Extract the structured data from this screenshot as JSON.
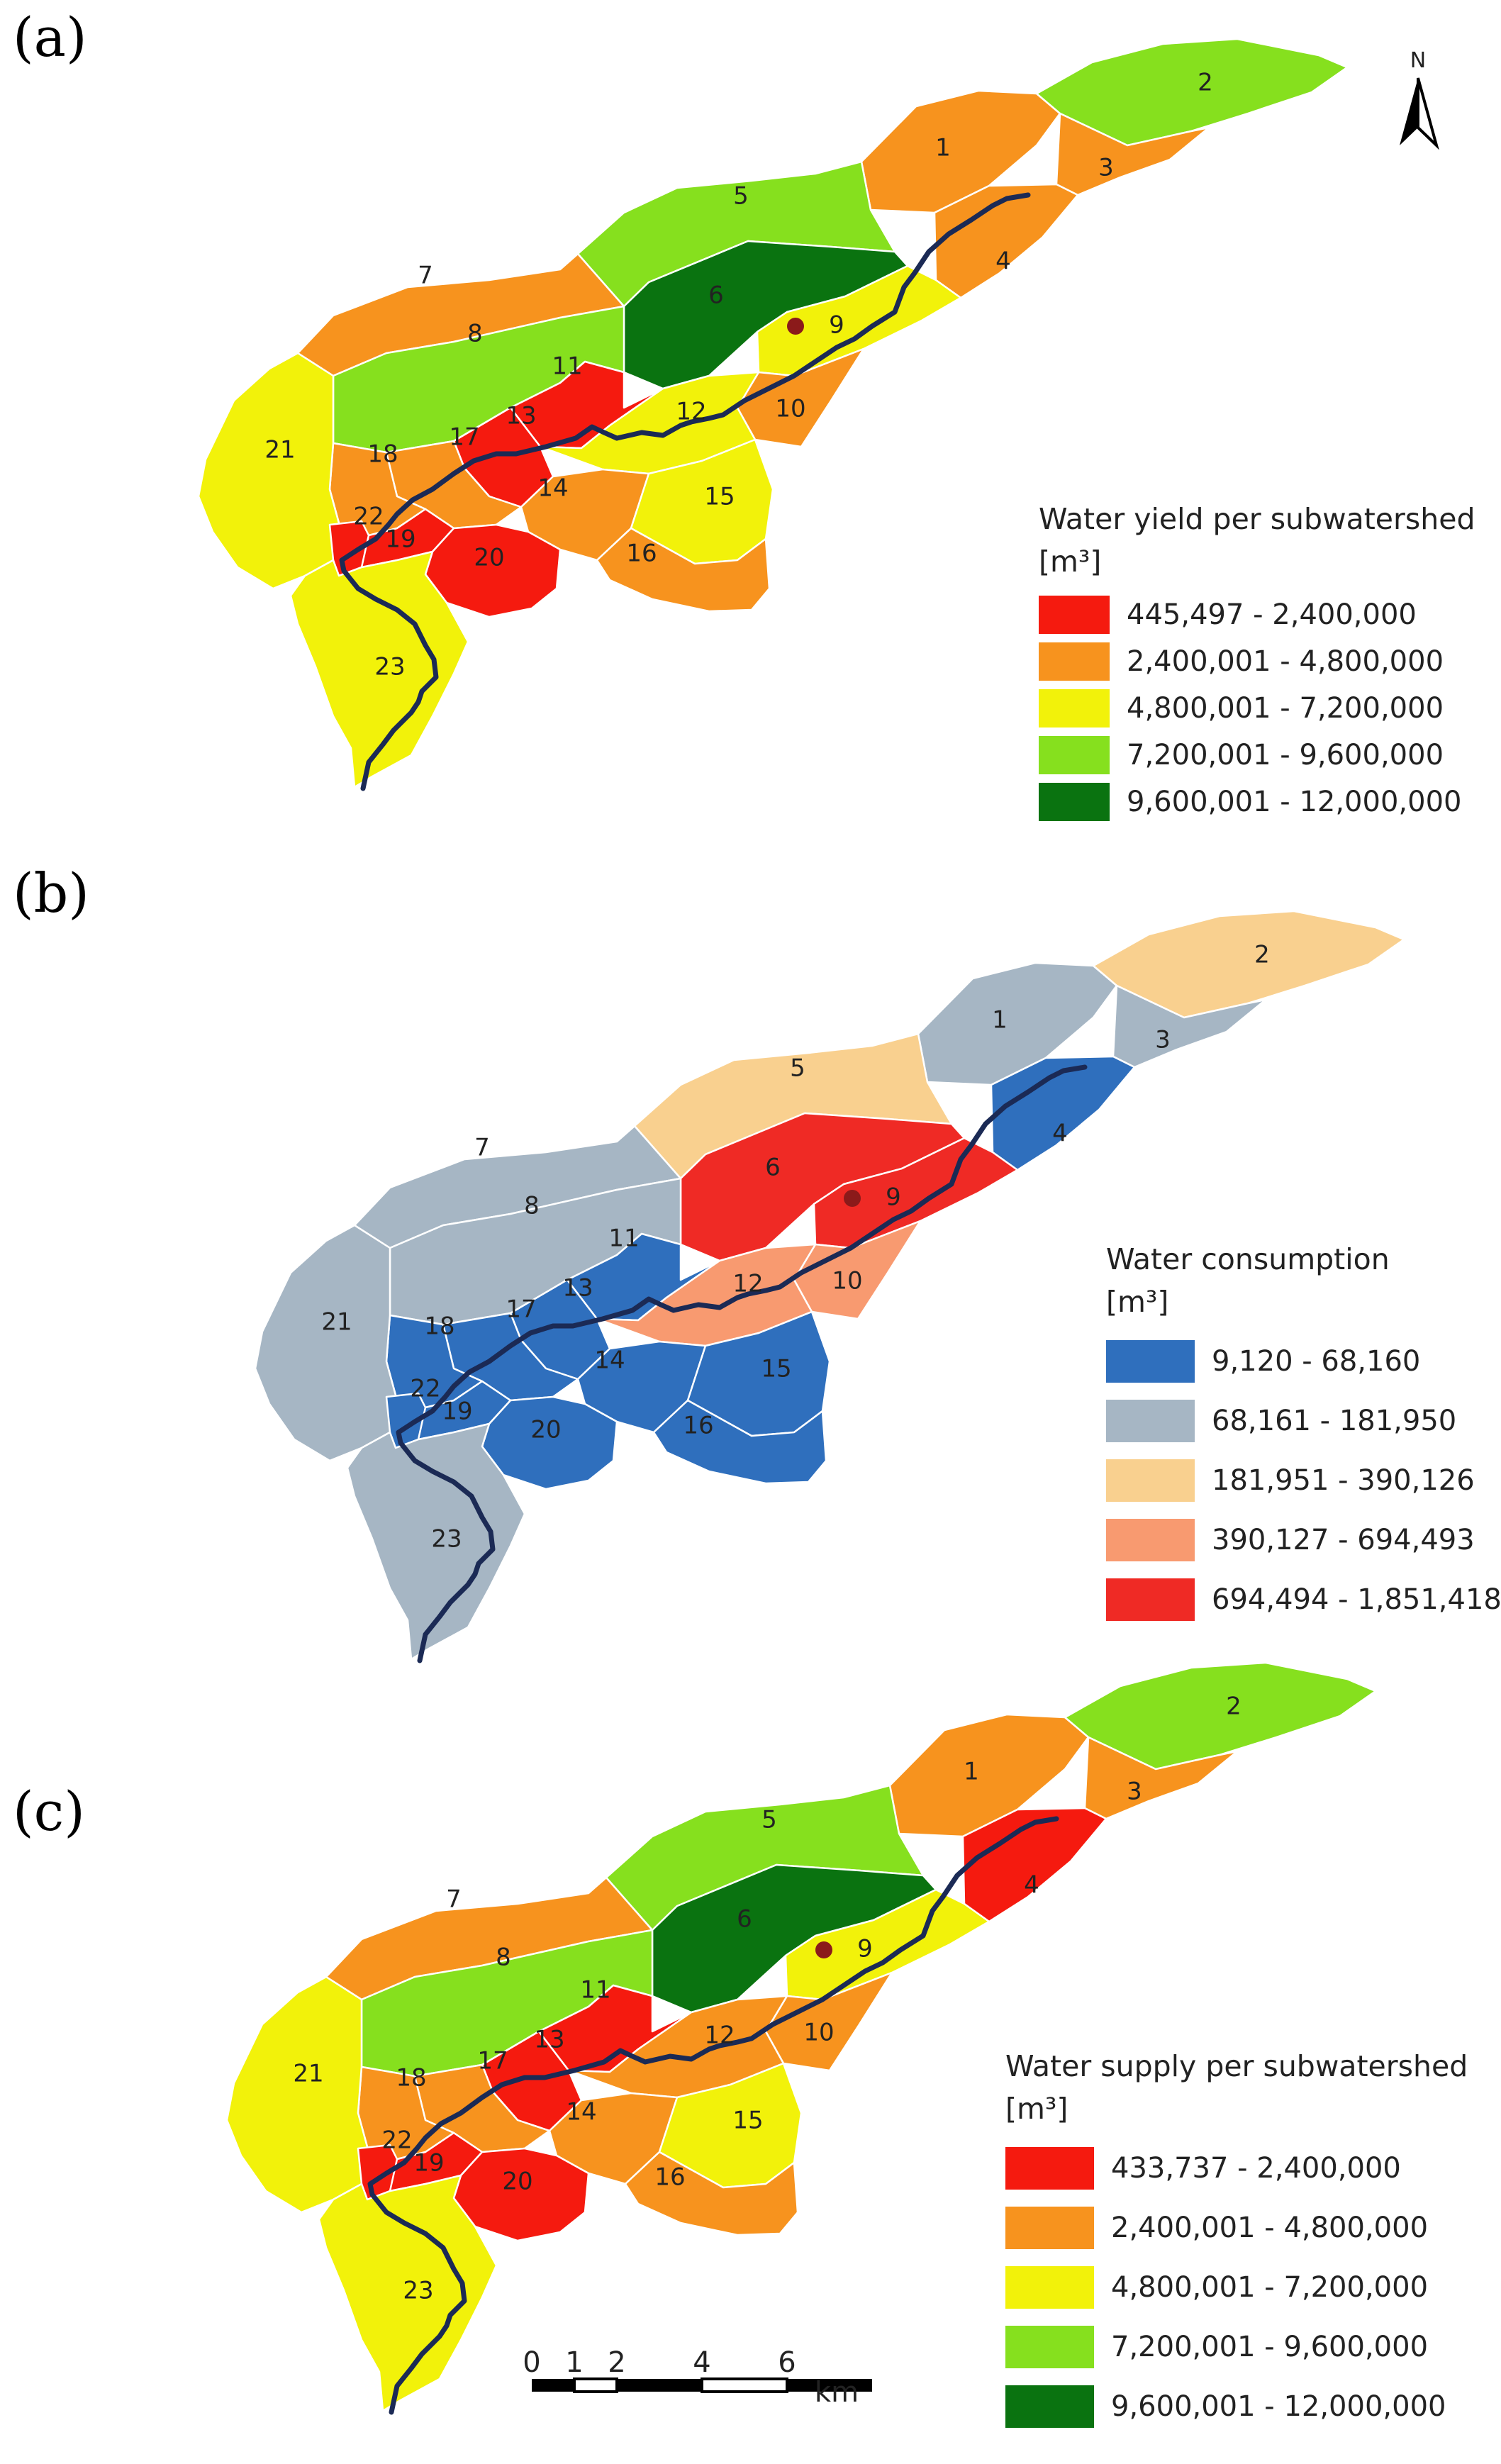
{
  "colors": {
    "river": "#1b2a55",
    "outlet": "#8b1a1a",
    "border": "#ffffff"
  },
  "panels": [
    {
      "label": "(a)",
      "legend": {
        "title": "Water yield per subwatershed",
        "unit": "[m³]",
        "classes": [
          {
            "range": "445,497 - 2,400,000",
            "color": "#f51a0f"
          },
          {
            "range": "2,400,001 - 4,800,000",
            "color": "#f7931e"
          },
          {
            "range": "4,800,001 - 7,200,000",
            "color": "#f2f20a"
          },
          {
            "range": "7,200,001 - 9,600,000",
            "color": "#86e01e"
          },
          {
            "range": "9,600,001 - 12,000,000",
            "color": "#0a7310"
          }
        ]
      },
      "subwatershed_class": {
        "1": 2,
        "2": 4,
        "3": 2,
        "4": 2,
        "5": 4,
        "6": 5,
        "7": 2,
        "8": 4,
        "9": 3,
        "10": 2,
        "11": 1,
        "12": 3,
        "13": 1,
        "14": 2,
        "15": 3,
        "16": 2,
        "17": 2,
        "18": 2,
        "19": 1,
        "20": 1,
        "21": 3,
        "22": 1,
        "23": 3
      }
    },
    {
      "label": "(b)",
      "legend": {
        "title": "Water consumption",
        "unit": "[m³]",
        "classes": [
          {
            "range": "9,120 - 68,160",
            "color": "#2f6fbd"
          },
          {
            "range": "68,161 - 181,950",
            "color": "#a6b6c4"
          },
          {
            "range": "181,951 - 390,126",
            "color": "#f9d08f"
          },
          {
            "range": "390,127 - 694,493",
            "color": "#f89a70"
          },
          {
            "range": "694,494 - 1,851,418",
            "color": "#ef2a25"
          }
        ]
      },
      "subwatershed_class": {
        "1": 2,
        "2": 3,
        "3": 2,
        "4": 1,
        "5": 3,
        "6": 5,
        "7": 2,
        "8": 2,
        "9": 5,
        "10": 4,
        "11": 1,
        "12": 4,
        "13": 1,
        "14": 1,
        "15": 1,
        "16": 1,
        "17": 1,
        "18": 1,
        "19": 1,
        "20": 1,
        "21": 2,
        "22": 1,
        "23": 2
      }
    },
    {
      "label": "(c)",
      "legend": {
        "title": "Water supply per subwatershed",
        "unit": "[m³]",
        "classes": [
          {
            "range": "433,737 - 2,400,000",
            "color": "#f51a0f"
          },
          {
            "range": "2,400,001 - 4,800,000",
            "color": "#f7931e"
          },
          {
            "range": "4,800,001 - 7,200,000",
            "color": "#f2f20a"
          },
          {
            "range": "7,200,001 - 9,600,000",
            "color": "#86e01e"
          },
          {
            "range": "9,600,001 - 12,000,000",
            "color": "#0a7310"
          }
        ]
      },
      "subwatershed_class": {
        "1": 2,
        "2": 4,
        "3": 2,
        "4": 1,
        "5": 4,
        "6": 5,
        "7": 2,
        "8": 4,
        "9": 3,
        "10": 2,
        "11": 1,
        "12": 2,
        "13": 1,
        "14": 2,
        "15": 3,
        "16": 2,
        "17": 2,
        "18": 2,
        "19": 1,
        "20": 1,
        "21": 3,
        "22": 1,
        "23": 3
      }
    }
  ],
  "north_arrow": {
    "label": "N"
  },
  "scale_bar": {
    "ticks": [
      "0",
      "1",
      "2",
      "4",
      "6"
    ],
    "unit": "km"
  }
}
